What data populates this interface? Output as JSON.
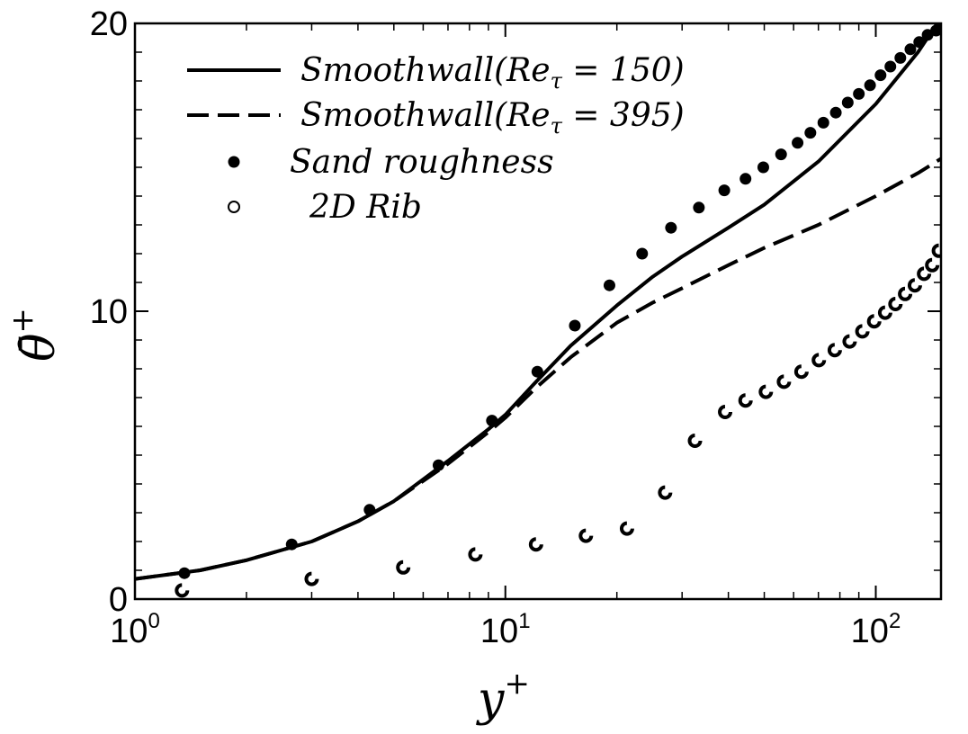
{
  "chart_data": {
    "type": "line",
    "title": "",
    "xlabel": "y",
    "xlabel_sup": "+",
    "ylabel": "θ̄",
    "ylabel_sup": "+",
    "xscale": "log",
    "xlim": [
      1,
      150
    ],
    "ylim": [
      0,
      20
    ],
    "x_ticks": [
      {
        "base": "10",
        "exp": "0",
        "value": 1
      },
      {
        "base": "10",
        "exp": "1",
        "value": 10
      },
      {
        "base": "10",
        "exp": "2",
        "value": 100
      }
    ],
    "y_ticks": [
      {
        "label": "0",
        "value": 0
      },
      {
        "label": "10",
        "value": 10
      },
      {
        "label": "20",
        "value": 20
      }
    ],
    "legend_position": "top-left",
    "series": [
      {
        "name": "Smoothwall(Re_τ = 150)",
        "legend_label": "Smoothwall(Reτ = 150)",
        "style": "solid",
        "color": "#000000",
        "x": [
          1,
          1.5,
          2,
          3,
          4,
          5,
          7,
          9,
          10,
          12,
          15,
          20,
          25,
          30,
          40,
          50,
          70,
          100,
          130,
          150
        ],
        "y": [
          0.7,
          1.0,
          1.35,
          2.0,
          2.7,
          3.4,
          4.8,
          5.9,
          6.4,
          7.5,
          8.8,
          10.2,
          11.2,
          11.9,
          12.9,
          13.7,
          15.2,
          17.2,
          19.0,
          20.2
        ]
      },
      {
        "name": "Smoothwall(Re_τ = 395)",
        "legend_label": "Smoothwall(Reτ = 395)",
        "style": "dashed",
        "color": "#000000",
        "x": [
          1,
          1.5,
          2,
          3,
          4,
          5,
          7,
          9,
          10,
          12,
          15,
          20,
          25,
          30,
          40,
          50,
          70,
          100,
          130,
          150
        ],
        "y": [
          0.7,
          1.0,
          1.35,
          2.0,
          2.7,
          3.4,
          4.7,
          5.8,
          6.3,
          7.3,
          8.4,
          9.6,
          10.3,
          10.8,
          11.6,
          12.2,
          13.0,
          14.0,
          14.8,
          15.3
        ]
      },
      {
        "name": "Sand roughness",
        "legend_label": "Sand roughness",
        "style": "marker-filled",
        "color": "#000000",
        "x": [
          1.36,
          2.65,
          4.3,
          6.6,
          9.2,
          12.2,
          15.4,
          19.1,
          23.4,
          28.0,
          33.3,
          39.0,
          44.5,
          49.7,
          55.5,
          61.5,
          66.6,
          72.2,
          78.0,
          84.0,
          90.0,
          96.5,
          103,
          109.5,
          116.5,
          124,
          131,
          138,
          145.5,
          152
        ],
        "y": [
          0.9,
          1.9,
          3.1,
          4.65,
          6.2,
          7.9,
          9.5,
          10.9,
          12.0,
          12.9,
          13.6,
          14.2,
          14.6,
          15.0,
          15.45,
          15.85,
          16.2,
          16.55,
          16.9,
          17.25,
          17.55,
          17.85,
          18.2,
          18.5,
          18.8,
          19.1,
          19.35,
          19.6,
          19.75,
          19.95
        ]
      },
      {
        "name": "2D Rib",
        "legend_label": "2D Rib",
        "style": "marker-open",
        "color": "#000000",
        "x": [
          1.34,
          3.0,
          5.3,
          8.3,
          12.1,
          16.5,
          21.3,
          27.0,
          32.5,
          39.2,
          44.5,
          50.5,
          56.5,
          63.0,
          70.2,
          77.5,
          85.0,
          92.0,
          99.0,
          106,
          113,
          120,
          127.5,
          135,
          142,
          148
        ],
        "y": [
          0.3,
          0.7,
          1.1,
          1.55,
          1.9,
          2.2,
          2.45,
          3.7,
          5.5,
          6.5,
          6.9,
          7.2,
          7.55,
          7.9,
          8.3,
          8.65,
          8.95,
          9.3,
          9.65,
          9.95,
          10.25,
          10.6,
          10.9,
          11.3,
          11.6,
          12.1
        ]
      }
    ]
  }
}
